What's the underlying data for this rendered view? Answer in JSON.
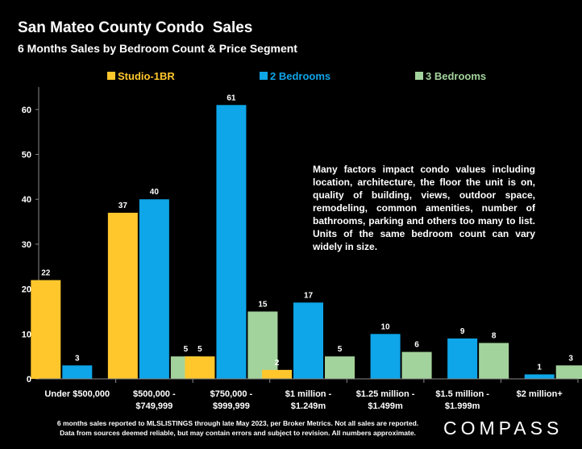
{
  "chart_data": {
    "type": "bar",
    "title": "San Mateo County Condo  Sales",
    "subtitle": "6 Months Sales by Bedroom Count & Price Segment",
    "categories": [
      [
        "Under $500,000"
      ],
      [
        "$500,000 -",
        "$749,999"
      ],
      [
        "$750,000 -",
        "$999,999"
      ],
      [
        "$1 million -",
        "$1.249m"
      ],
      [
        "$1.25 million -",
        "$1.499m"
      ],
      [
        "$1.5 million -",
        "$1.999m"
      ],
      [
        "$2 million+"
      ]
    ],
    "series": [
      {
        "name": "Studio-1BR",
        "color": "#FFC72C",
        "values": [
          22,
          37,
          5,
          2,
          null,
          null,
          null
        ]
      },
      {
        "name": "2 Bedrooms",
        "color": "#0EA5E9",
        "values": [
          3,
          40,
          61,
          17,
          10,
          9,
          1
        ]
      },
      {
        "name": "3 Bedrooms",
        "color": "#A3D39C",
        "values": [
          null,
          5,
          15,
          5,
          6,
          8,
          3
        ]
      }
    ],
    "ylim": [
      0,
      65
    ],
    "yticks": [
      0,
      10,
      20,
      30,
      40,
      50,
      60
    ],
    "legend_position": "top",
    "grid": false,
    "annotation": "Many factors impact condo values including location, architecture, the floor the unit is on, quality of building, views, outdoor space, remodeling, common amenities, number of bathrooms, parking and others too many to list. Units of the same bedroom count can vary widely in size."
  },
  "footnote": [
    "6 months sales reported to MLSLISTINGS through late May 2023, per Broker Metrics. Not all sales are reported.",
    "Data from sources deemed reliable, but may contain errors and subject to revision. All numbers approximate."
  ],
  "logo": "COMPASS",
  "colors": {
    "background": "#000000",
    "text": "#FFFFFF",
    "axis": "#888888"
  }
}
